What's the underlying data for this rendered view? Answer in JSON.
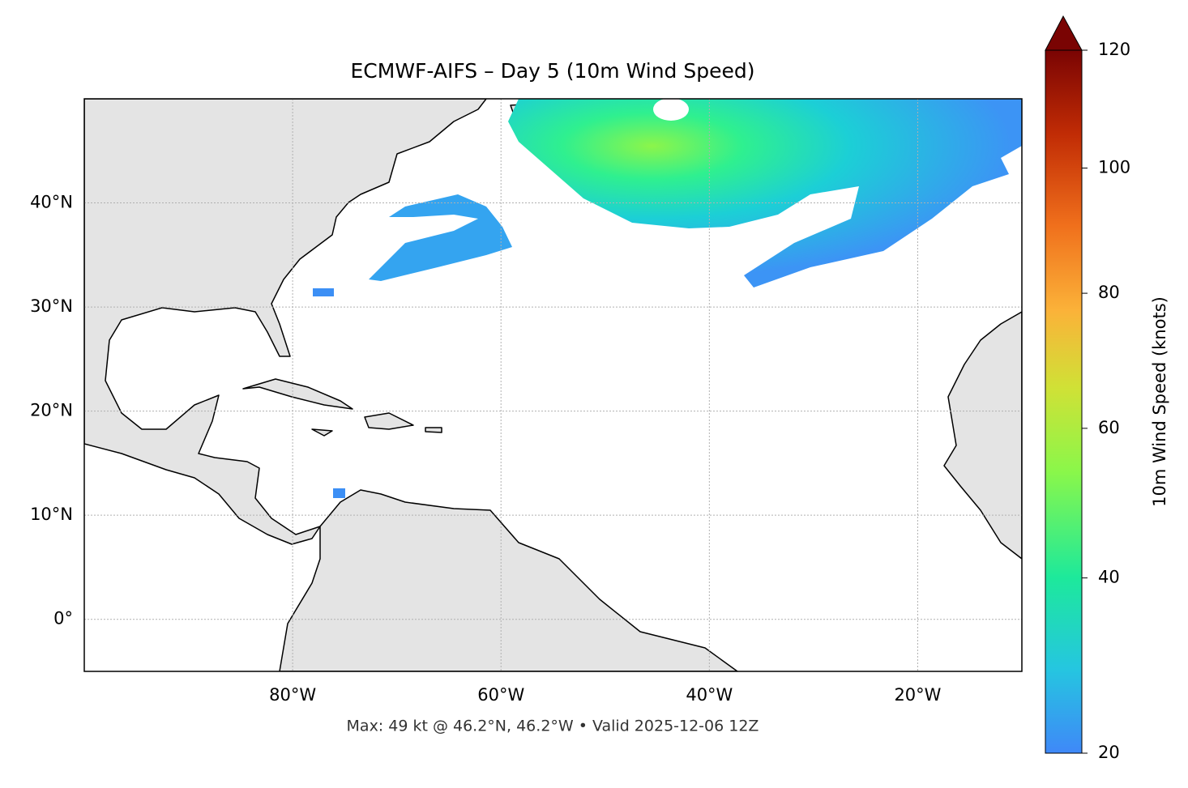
{
  "chart_data": {
    "type": "map",
    "title": "ECMWF-AIFS – Day 5 (10m Wind Speed)",
    "caption": "Max: 49 kt @ 46.2°N, 46.2°W • Valid 2025-12-06 12Z",
    "xlim": [
      -100,
      -10
    ],
    "ylim": [
      -5,
      50
    ],
    "xticks": [
      {
        "value": -80,
        "label": "80°W"
      },
      {
        "value": -60,
        "label": "60°W"
      },
      {
        "value": -40,
        "label": "40°W"
      },
      {
        "value": -20,
        "label": "20°W"
      }
    ],
    "yticks": [
      {
        "value": 0,
        "label": "0°"
      },
      {
        "value": 10,
        "label": "10°N"
      },
      {
        "value": 20,
        "label": "20°N"
      },
      {
        "value": 30,
        "label": "30°N"
      },
      {
        "value": 40,
        "label": "40°N"
      }
    ],
    "grid": true,
    "colorbar": {
      "label": "10m Wind Speed (knots)",
      "lim": [
        20,
        120
      ],
      "ticks": [
        20,
        40,
        60,
        80,
        100,
        120
      ],
      "gamma": 0.7,
      "extend": "max"
    }
  }
}
